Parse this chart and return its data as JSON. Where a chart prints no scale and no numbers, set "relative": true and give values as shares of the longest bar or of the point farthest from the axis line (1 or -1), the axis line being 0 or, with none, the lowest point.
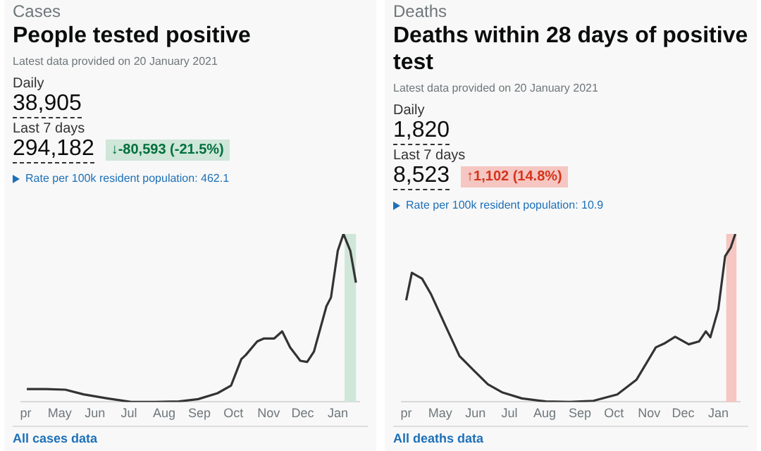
{
  "chart_data": [
    {
      "type": "line",
      "subtitle": "Cases",
      "title": "People tested positive",
      "relative": true,
      "grid": false,
      "legend": false,
      "marker": "none",
      "annotations": [
        "Latest data provided on 20 January 2021",
        "Daily",
        "38,905",
        "Last 7 days",
        "294,182",
        "↓-80,593 (-21.5%)",
        "Rate per 100k resident population: 462.1",
        "All cases data"
      ],
      "xlim": [
        "2020-03-28",
        "2021-01-20"
      ],
      "xticks": [
        {
          "value": "2020-04-01",
          "label": "pr"
        },
        {
          "value": "2020-05-01",
          "label": "May"
        },
        {
          "value": "2020-06-01",
          "label": "Jun"
        },
        {
          "value": "2020-07-01",
          "label": "Jul"
        },
        {
          "value": "2020-08-01",
          "label": "Aug"
        },
        {
          "value": "2020-09-01",
          "label": "Sep"
        },
        {
          "value": "2020-10-01",
          "label": "Oct"
        },
        {
          "value": "2020-11-01",
          "label": "Nov"
        },
        {
          "value": "2020-12-01",
          "label": "Dec"
        },
        {
          "value": "2021-01-01",
          "label": "Jan"
        }
      ],
      "bands": [
        {
          "axis": "x",
          "from": "2021-01-07",
          "to": "2021-01-17",
          "color": "#cfe6d9"
        }
      ],
      "series": [
        {
          "color": "#333333",
          "x": [
            "2020-04-02",
            "2020-04-19",
            "2020-05-06",
            "2020-05-22",
            "2020-06-12",
            "2020-07-03",
            "2020-07-24",
            "2020-08-14",
            "2020-08-31",
            "2020-09-17",
            "2020-09-29",
            "2020-10-03",
            "2020-10-08",
            "2020-10-12",
            "2020-10-22",
            "2020-10-28",
            "2020-11-06",
            "2020-11-13",
            "2020-11-20",
            "2020-11-29",
            "2020-12-05",
            "2020-12-11",
            "2020-12-22",
            "2020-12-26",
            "2021-01-01",
            "2021-01-06",
            "2021-01-12",
            "2021-01-17"
          ],
          "values": [
            0.077,
            0.077,
            0.073,
            0.045,
            0.021,
            0,
            0,
            0.003,
            0.017,
            0.052,
            0.098,
            0.168,
            0.255,
            0.28,
            0.36,
            0.378,
            0.378,
            0.42,
            0.325,
            0.245,
            0.238,
            0.3,
            0.57,
            0.622,
            0.9,
            1,
            0.9,
            0.71
          ]
        }
      ]
    },
    {
      "type": "line",
      "subtitle": "Deaths",
      "title": "Deaths within 28 days of positive test",
      "relative": true,
      "grid": false,
      "legend": false,
      "marker": "none",
      "annotations": [
        "Latest data provided on 20 January 2021",
        "Daily",
        "1,820",
        "Last 7 days",
        "8,523",
        "↑1,102 (14.8%)",
        "Rate per 100k resident population: 10.9",
        "All deaths data"
      ],
      "xlim": [
        "2020-03-28",
        "2021-01-20"
      ],
      "xticks": [
        {
          "value": "2020-04-01",
          "label": "pr"
        },
        {
          "value": "2020-05-01",
          "label": "May"
        },
        {
          "value": "2020-06-01",
          "label": "Jun"
        },
        {
          "value": "2020-07-01",
          "label": "Jul"
        },
        {
          "value": "2020-08-01",
          "label": "Aug"
        },
        {
          "value": "2020-09-01",
          "label": "Sep"
        },
        {
          "value": "2020-10-01",
          "label": "Oct"
        },
        {
          "value": "2020-11-01",
          "label": "Nov"
        },
        {
          "value": "2020-12-01",
          "label": "Dec"
        },
        {
          "value": "2021-01-01",
          "label": "Jan"
        }
      ],
      "bands": [
        {
          "axis": "x",
          "from": "2021-01-08",
          "to": "2021-01-17",
          "color": "#f5c6c2"
        }
      ],
      "series": [
        {
          "color": "#333333",
          "x": [
            "2020-04-01",
            "2020-04-06",
            "2020-04-15",
            "2020-04-23",
            "2020-05-06",
            "2020-05-18",
            "2020-05-31",
            "2020-06-12",
            "2020-06-25",
            "2020-07-12",
            "2020-08-02",
            "2020-08-23",
            "2020-09-13",
            "2020-10-04",
            "2020-10-21",
            "2020-11-07",
            "2020-11-15",
            "2020-11-24",
            "2020-12-06",
            "2020-12-15",
            "2020-12-21",
            "2020-12-25",
            "2021-01-01",
            "2021-01-07",
            "2021-01-12",
            "2021-01-16"
          ],
          "values": [
            0.605,
            0.769,
            0.734,
            0.64,
            0.448,
            0.273,
            0.185,
            0.105,
            0.056,
            0.021,
            0.003,
            0,
            0.007,
            0.045,
            0.133,
            0.325,
            0.35,
            0.388,
            0.343,
            0.36,
            0.42,
            0.385,
            0.552,
            0.867,
            0.92,
            1
          ]
        }
      ]
    }
  ]
}
